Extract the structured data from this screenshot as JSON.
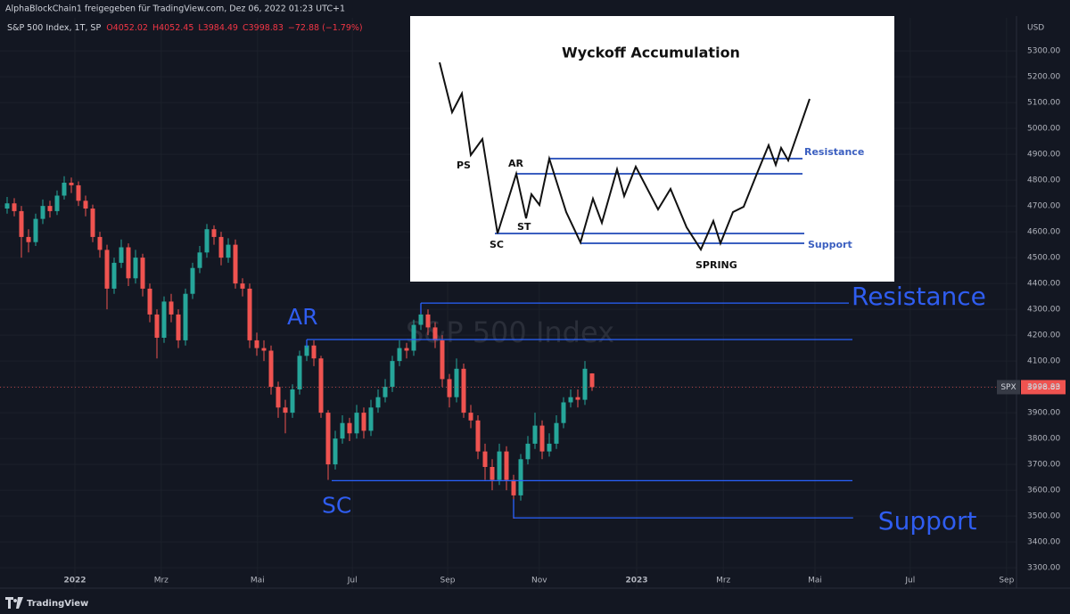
{
  "header": {
    "shared_by": "AlphaBlockChain1 freigegeben für TradingView.com, Dez 06, 2022 01:23 UTC+1",
    "symbol": "S&P 500 Index, 1T, SP",
    "ohlc": [
      "O4052.02",
      "H4052.45",
      "L3984.49",
      "C3998.83",
      "−72.88 (−1.79%)"
    ],
    "currency": "USD"
  },
  "chart_data": {
    "type": "candlestick",
    "watermark": "S&P 500 Index",
    "x": [
      0,
      1,
      2,
      3,
      4,
      5,
      6,
      7,
      8,
      9,
      10,
      11,
      12,
      13,
      14,
      15,
      16,
      17,
      18,
      19,
      20,
      21,
      22,
      23,
      24,
      25,
      26,
      27,
      28,
      29,
      30,
      31,
      32,
      33,
      34,
      35,
      36,
      37,
      38,
      39,
      40,
      41,
      42,
      43,
      44,
      45,
      46,
      47,
      48,
      49,
      50,
      51,
      52,
      53,
      54,
      55,
      56,
      57,
      58,
      59,
      60,
      61,
      62,
      63,
      64,
      65,
      66,
      67,
      68,
      69,
      70,
      71,
      72,
      73,
      74,
      75,
      76,
      77,
      78,
      79,
      80,
      81,
      82
    ],
    "open": [
      4690,
      4710,
      4680,
      4580,
      4560,
      4650,
      4700,
      4680,
      4740,
      4790,
      4780,
      4720,
      4690,
      4580,
      4530,
      4380,
      4480,
      4540,
      4420,
      4500,
      4380,
      4280,
      4190,
      4330,
      4280,
      4180,
      4360,
      4460,
      4520,
      4610,
      4580,
      4500,
      4550,
      4400,
      4380,
      4180,
      4150,
      4140,
      4000,
      3920,
      3900,
      3990,
      4120,
      4160,
      4110,
      3900,
      3700,
      3800,
      3860,
      3820,
      3900,
      3830,
      3920,
      3960,
      4000,
      4100,
      4150,
      4140,
      4240,
      4280,
      4230,
      4180,
      4030,
      3960,
      4070,
      3900,
      3870,
      3750,
      3690,
      3640,
      3750,
      3640,
      3580,
      3720,
      3780,
      3850,
      3750,
      3780,
      3860,
      3940,
      3960,
      3950,
      4052.02
    ],
    "high": [
      4735,
      4730,
      4700,
      4610,
      4670,
      4725,
      4720,
      4760,
      4815,
      4810,
      4795,
      4740,
      4705,
      4600,
      4550,
      4500,
      4570,
      4555,
      4530,
      4515,
      4400,
      4300,
      4350,
      4360,
      4300,
      4380,
      4480,
      4545,
      4630,
      4625,
      4600,
      4575,
      4570,
      4420,
      4400,
      4210,
      4180,
      4160,
      4020,
      3950,
      4010,
      4140,
      4180,
      4180,
      4120,
      3910,
      3830,
      3890,
      3880,
      3930,
      3920,
      3950,
      3990,
      4030,
      4120,
      4180,
      4170,
      4260,
      4320,
      4300,
      4250,
      4200,
      4050,
      4110,
      4090,
      3930,
      3890,
      3780,
      3720,
      3780,
      3770,
      3660,
      3740,
      3810,
      3900,
      3870,
      3820,
      3890,
      3960,
      3990,
      3990,
      4100,
      4052.45
    ],
    "low": [
      4670,
      4660,
      4500,
      4520,
      4545,
      4630,
      4655,
      4665,
      4725,
      4750,
      4700,
      4660,
      4560,
      4500,
      4300,
      4360,
      4460,
      4390,
      4400,
      4350,
      4250,
      4110,
      4170,
      4250,
      4150,
      4160,
      4340,
      4440,
      4500,
      4550,
      4470,
      4480,
      4380,
      4350,
      4150,
      4120,
      4100,
      3970,
      3880,
      3820,
      3880,
      3970,
      4100,
      4080,
      3880,
      3640,
      3680,
      3780,
      3790,
      3800,
      3800,
      3810,
      3900,
      3940,
      3980,
      4080,
      4110,
      4120,
      4220,
      4200,
      4150,
      4000,
      3920,
      3940,
      3880,
      3840,
      3720,
      3640,
      3600,
      3620,
      3600,
      3490,
      3560,
      3700,
      3760,
      3720,
      3730,
      3760,
      3840,
      3920,
      3920,
      3930,
      3984.49
    ],
    "close": [
      4710,
      4680,
      4580,
      4560,
      4650,
      4700,
      4680,
      4740,
      4790,
      4780,
      4720,
      4690,
      4580,
      4530,
      4380,
      4480,
      4540,
      4420,
      4500,
      4380,
      4280,
      4190,
      4330,
      4280,
      4180,
      4360,
      4460,
      4520,
      4610,
      4580,
      4500,
      4550,
      4400,
      4380,
      4180,
      4150,
      4140,
      4000,
      3920,
      3900,
      3990,
      4120,
      4160,
      4110,
      3900,
      3700,
      3800,
      3860,
      3820,
      3900,
      3830,
      3920,
      3960,
      4000,
      4100,
      4150,
      4140,
      4240,
      4280,
      4230,
      4180,
      4030,
      3960,
      4070,
      3900,
      3870,
      3750,
      3690,
      3640,
      3750,
      3640,
      3580,
      3720,
      3780,
      3850,
      3750,
      3780,
      3860,
      3940,
      3960,
      3950,
      4070,
      3998.83
    ],
    "up_color": "#26a69a",
    "down_color": "#ef5350",
    "xlim": [
      -1,
      141.5
    ],
    "ylim": [
      3221,
      5428
    ],
    "xticks": [
      {
        "value": 9.5,
        "label": "2022"
      },
      {
        "value": 21.6,
        "label": "Mrz"
      },
      {
        "value": 35.1,
        "label": "Mai"
      },
      {
        "value": 48.4,
        "label": "Jul"
      },
      {
        "value": 61.75,
        "label": "Sep"
      },
      {
        "value": 74.6,
        "label": "Nov"
      },
      {
        "value": 88.25,
        "label": "2023"
      },
      {
        "value": 100.4,
        "label": "Mrz"
      },
      {
        "value": 113.25,
        "label": "Mai"
      },
      {
        "value": 126.6,
        "label": "Jul"
      },
      {
        "value": 140.1,
        "label": "Sep"
      }
    ],
    "yticks": [
      {
        "value": 3300,
        "label": "3300.00"
      },
      {
        "value": 3400,
        "label": "3400.00"
      },
      {
        "value": 3500,
        "label": "3500.00"
      },
      {
        "value": 3600,
        "label": "3600.00"
      },
      {
        "value": 3700,
        "label": "3700.00"
      },
      {
        "value": 3800,
        "label": "3800.00"
      },
      {
        "value": 3900,
        "label": "3900.00"
      },
      {
        "value": 4000,
        "label": "4000.00"
      },
      {
        "value": 4100,
        "label": "4100.00"
      },
      {
        "value": 4200,
        "label": "4200.00"
      },
      {
        "value": 4300,
        "label": "4300.00"
      },
      {
        "value": 4400,
        "label": "4400.00"
      },
      {
        "value": 4500,
        "label": "4500.00"
      },
      {
        "value": 4600,
        "label": "4600.00"
      },
      {
        "value": 4700,
        "label": "4700.00"
      },
      {
        "value": 4800,
        "label": "4800.00"
      },
      {
        "value": 4900,
        "label": "4900.00"
      },
      {
        "value": 5000,
        "label": "5000.00"
      },
      {
        "value": 5100,
        "label": "5100.00"
      },
      {
        "value": 5200,
        "label": "5200.00"
      },
      {
        "value": 5300,
        "label": "5300.00"
      }
    ],
    "grid": true,
    "last_price": {
      "symbol": "SPX",
      "value": 3998.83
    },
    "levels": [
      {
        "label": "Resistance",
        "y": 4324,
        "x": [
          58,
          118
        ]
      },
      {
        "label": "AR",
        "y": 4183,
        "x": [
          42,
          118.5
        ]
      },
      {
        "label": "SC",
        "y": 3637,
        "x": [
          45.5,
          118.5
        ]
      },
      {
        "label": "Support",
        "y": 3493,
        "x": [
          71,
          118.6
        ]
      }
    ],
    "level_color": "#2962ff"
  },
  "inset": {
    "title": "Wyckoff Accumulation",
    "labels": [
      "PS",
      "AR",
      "ST",
      "SC",
      "SPRING",
      "Resistance",
      "Support"
    ]
  },
  "footer": {
    "brand": "TradingView"
  }
}
